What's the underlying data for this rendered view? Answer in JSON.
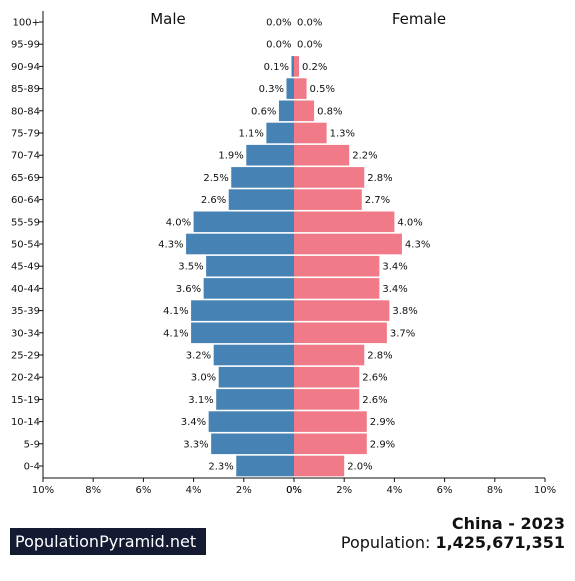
{
  "colors": {
    "male": "#4682b4",
    "female": "#f07a87",
    "axis": "#111111",
    "brand_background": "#151a33",
    "brand_text": "#ffffff"
  },
  "chart_data": {
    "type": "bar",
    "orientation": "horizontal-population-pyramid",
    "title": "",
    "sides": {
      "male": "Male",
      "female": "Female"
    },
    "categories": [
      "100+",
      "95-99",
      "90-94",
      "85-89",
      "80-84",
      "75-79",
      "70-74",
      "65-69",
      "60-64",
      "55-59",
      "50-54",
      "45-49",
      "40-44",
      "35-39",
      "30-34",
      "25-29",
      "20-24",
      "15-19",
      "10-14",
      "5-9",
      "0-4"
    ],
    "series": [
      {
        "name": "Male",
        "values": [
          0.0,
          0.0,
          0.1,
          0.3,
          0.6,
          1.1,
          1.9,
          2.5,
          2.6,
          4.0,
          4.3,
          3.5,
          3.6,
          4.1,
          4.1,
          3.2,
          3.0,
          3.1,
          3.4,
          3.3,
          2.3
        ],
        "labels": [
          "0.0%",
          "0.0%",
          "0.1%",
          "0.3%",
          "0.6%",
          "1.1%",
          "1.9%",
          "2.5%",
          "2.6%",
          "4.0%",
          "4.3%",
          "3.5%",
          "3.6%",
          "4.1%",
          "4.1%",
          "3.2%",
          "3.0%",
          "3.1%",
          "3.4%",
          "3.3%",
          "2.3%"
        ]
      },
      {
        "name": "Female",
        "values": [
          0.0,
          0.0,
          0.2,
          0.5,
          0.8,
          1.3,
          2.2,
          2.8,
          2.7,
          4.0,
          4.3,
          3.4,
          3.4,
          3.8,
          3.7,
          2.8,
          2.6,
          2.6,
          2.9,
          2.9,
          2.0
        ],
        "labels": [
          "0.0%",
          "0.0%",
          "0.2%",
          "0.5%",
          "0.8%",
          "1.3%",
          "2.2%",
          "2.8%",
          "2.7%",
          "4.0%",
          "4.3%",
          "3.4%",
          "3.4%",
          "3.8%",
          "3.7%",
          "2.8%",
          "2.6%",
          "2.6%",
          "2.9%",
          "2.9%",
          "2.0%"
        ]
      }
    ],
    "x_ticks": {
      "left": [
        "10%",
        "8%",
        "6%",
        "4%",
        "2%",
        "0%"
      ],
      "right": [
        "0%",
        "2%",
        "4%",
        "6%",
        "8%",
        "10%"
      ]
    },
    "x_range_each_side": [
      0,
      10
    ],
    "grid": false,
    "legend": "side labels at top"
  },
  "footer": {
    "brand": "PopulationPyramid.net",
    "country_year": "China - 2023",
    "population_label": "Population: ",
    "population_value": "1,425,671,351"
  }
}
